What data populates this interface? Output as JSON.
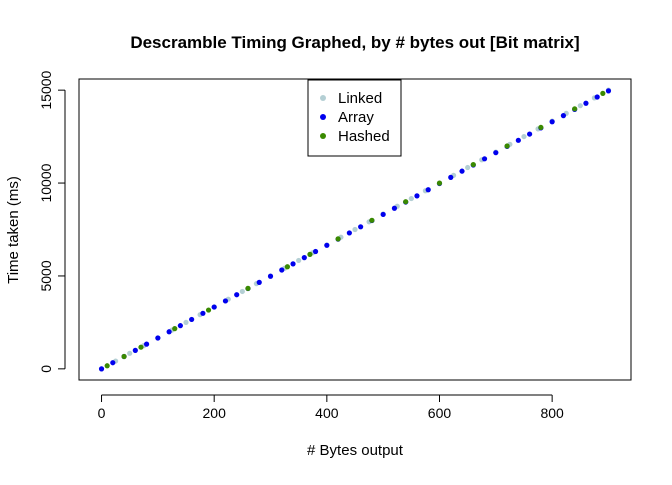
{
  "chart_data": {
    "type": "scatter",
    "title": "Descramble Timing Graphed, by # bytes out [Bit matrix]",
    "xlabel": "# Bytes output",
    "ylabel": "Time taken (ms)",
    "xlim": [
      -40,
      940
    ],
    "ylim": [
      -600,
      15600
    ],
    "x_ticks": [
      0,
      200,
      400,
      600,
      800
    ],
    "y_ticks": [
      0,
      5000,
      10000,
      15000
    ],
    "grid": false,
    "legend_position": "top-center",
    "series": [
      {
        "name": "Linked",
        "color": "#b4cfd4",
        "x": [
          0,
          25,
          50,
          75,
          100,
          125,
          150,
          175,
          200,
          225,
          250,
          275,
          300,
          325,
          350,
          375,
          400,
          425,
          450,
          475,
          500,
          525,
          550,
          575,
          600,
          625,
          650,
          675,
          700,
          725,
          750,
          775,
          800,
          825,
          850,
          875,
          900
        ],
        "y": [
          0,
          420,
          835,
          1250,
          1665,
          2085,
          2500,
          2915,
          3335,
          3750,
          4165,
          4585,
          5000,
          5415,
          5835,
          6250,
          6665,
          7085,
          7500,
          7915,
          8335,
          8750,
          9165,
          9585,
          10000,
          10415,
          10835,
          11250,
          11665,
          12085,
          12500,
          12915,
          13335,
          13750,
          14165,
          14585,
          15000
        ]
      },
      {
        "name": "Array",
        "color": "#0000ee",
        "x": [
          0,
          20,
          40,
          60,
          80,
          100,
          120,
          140,
          160,
          180,
          200,
          220,
          240,
          260,
          280,
          300,
          320,
          340,
          360,
          380,
          400,
          420,
          440,
          460,
          480,
          500,
          520,
          540,
          560,
          580,
          600,
          620,
          640,
          660,
          680,
          700,
          720,
          740,
          760,
          780,
          800,
          820,
          840,
          860,
          880,
          900
        ],
        "y": [
          0,
          330,
          665,
          995,
          1330,
          1660,
          1995,
          2325,
          2660,
          2990,
          3325,
          3655,
          3990,
          4320,
          4655,
          4985,
          5320,
          5650,
          5985,
          6315,
          6650,
          6980,
          7315,
          7645,
          7980,
          8310,
          8645,
          8975,
          9310,
          9640,
          9975,
          10305,
          10640,
          10970,
          11305,
          11635,
          11970,
          12300,
          12635,
          12965,
          13300,
          13630,
          13965,
          14295,
          14630,
          14960
        ]
      },
      {
        "name": "Hashed",
        "color": "#3a8a00",
        "x": [
          10,
          40,
          70,
          130,
          190,
          260,
          330,
          370,
          420,
          480,
          540,
          600,
          660,
          720,
          780,
          840,
          890
        ],
        "y": [
          165,
          665,
          1165,
          2165,
          3165,
          4330,
          5495,
          6160,
          6995,
          7995,
          8995,
          9995,
          10995,
          11995,
          12995,
          13995,
          14825
        ]
      }
    ]
  }
}
